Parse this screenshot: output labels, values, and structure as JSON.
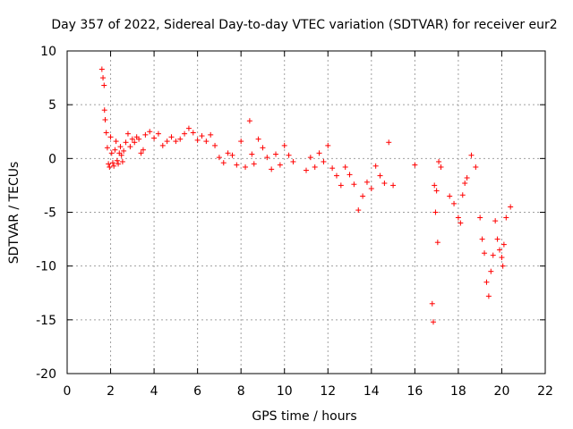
{
  "chart_data": {
    "type": "scatter",
    "title": "Day 357 of 2022, Sidereal Day-to-day VTEC variation (SDTVAR) for receiver eur2",
    "xlabel": "GPS time / hours",
    "ylabel": "SDTVAR / TECUs",
    "xlim": [
      0,
      22
    ],
    "ylim": [
      -20,
      10
    ],
    "xticks": [
      0,
      2,
      4,
      6,
      8,
      10,
      12,
      14,
      16,
      18,
      20,
      22
    ],
    "yticks": [
      -20,
      -15,
      -10,
      -5,
      0,
      5,
      10
    ],
    "grid": true,
    "marker": "+",
    "color": "#ff0000",
    "series": [
      {
        "name": "SDTVAR",
        "x": [
          1.6,
          1.65,
          1.7,
          1.72,
          1.75,
          1.8,
          1.85,
          1.9,
          1.95,
          2.0,
          2.05,
          2.1,
          2.15,
          2.2,
          2.25,
          2.3,
          2.35,
          2.4,
          2.45,
          2.5,
          2.55,
          2.6,
          2.7,
          2.8,
          2.9,
          3.0,
          3.1,
          3.2,
          3.3,
          3.4,
          3.5,
          3.6,
          3.8,
          4.0,
          4.2,
          4.4,
          4.6,
          4.8,
          5.0,
          5.2,
          5.4,
          5.6,
          5.8,
          6.0,
          6.2,
          6.4,
          6.6,
          6.8,
          7.0,
          7.2,
          7.4,
          7.6,
          7.8,
          8.0,
          8.2,
          8.4,
          8.5,
          8.6,
          8.8,
          9.0,
          9.2,
          9.4,
          9.6,
          9.8,
          10.0,
          10.2,
          10.4,
          11.0,
          11.2,
          11.4,
          11.6,
          11.8,
          12.0,
          12.2,
          12.4,
          12.6,
          12.8,
          13.0,
          13.2,
          13.4,
          13.6,
          13.8,
          14.0,
          14.2,
          14.4,
          14.6,
          14.8,
          15.0,
          16.0,
          16.8,
          16.85,
          16.9,
          16.95,
          17.0,
          17.05,
          17.1,
          17.2,
          17.6,
          17.8,
          18.0,
          18.1,
          18.2,
          18.3,
          18.4,
          18.6,
          18.8,
          19.0,
          19.1,
          19.2,
          19.3,
          19.4,
          19.5,
          19.6,
          19.7,
          19.8,
          19.9,
          20.0,
          20.05,
          20.1,
          20.2,
          20.4
        ],
        "y": [
          8.3,
          7.5,
          6.8,
          4.5,
          3.6,
          2.4,
          1.0,
          -0.5,
          -0.8,
          2.0,
          0.5,
          -0.4,
          -0.7,
          0.8,
          1.6,
          -0.2,
          -0.5,
          0.5,
          1.1,
          0.3,
          -0.3,
          0.7,
          1.5,
          2.3,
          1.1,
          1.8,
          1.5,
          2.0,
          1.8,
          0.5,
          0.8,
          2.2,
          2.5,
          1.9,
          2.3,
          1.2,
          1.6,
          2.0,
          1.6,
          1.8,
          2.3,
          2.8,
          2.4,
          1.7,
          2.1,
          1.6,
          2.2,
          1.2,
          0.1,
          -0.4,
          0.5,
          0.3,
          -0.6,
          1.6,
          -0.8,
          3.5,
          0.4,
          -0.5,
          1.8,
          1.0,
          0.1,
          -1.0,
          0.4,
          -0.6,
          1.2,
          0.3,
          -0.3,
          -1.1,
          0.1,
          -0.8,
          0.5,
          -0.3,
          1.2,
          -0.9,
          -1.6,
          -2.5,
          -0.8,
          -1.5,
          -2.4,
          -4.8,
          -3.5,
          -2.2,
          -2.8,
          -0.7,
          -1.6,
          -2.3,
          1.5,
          -2.5,
          -0.6,
          -13.5,
          -15.2,
          -2.5,
          -5.0,
          -3.0,
          -7.8,
          -0.3,
          -0.8,
          -3.5,
          -4.2,
          -5.5,
          -6.0,
          -3.4,
          -2.3,
          -1.8,
          0.3,
          -0.8,
          -5.5,
          -7.5,
          -8.8,
          -11.5,
          -12.8,
          -10.5,
          -9.0,
          -5.8,
          -7.5,
          -8.5,
          -9.2,
          -10.0,
          -8.0,
          -5.5,
          -4.5
        ]
      }
    ]
  }
}
